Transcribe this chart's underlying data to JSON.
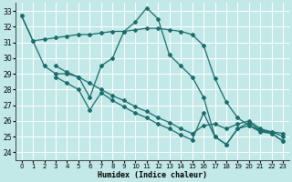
{
  "xlabel": "Humidex (Indice chaleur)",
  "ylabel": "",
  "xlim": [
    -0.5,
    23.5
  ],
  "ylim": [
    23.5,
    33.5
  ],
  "yticks": [
    24,
    25,
    26,
    27,
    28,
    29,
    30,
    31,
    32,
    33
  ],
  "xticks": [
    0,
    1,
    2,
    3,
    4,
    5,
    6,
    7,
    8,
    9,
    10,
    11,
    12,
    13,
    14,
    15,
    16,
    17,
    18,
    19,
    20,
    21,
    22,
    23
  ],
  "bg_color": "#c2e8e8",
  "line_color": "#1a6b6b",
  "grid_color": "#ffffff",
  "lines": [
    {
      "x": [
        0,
        1,
        2,
        3,
        4,
        5,
        6,
        7,
        8,
        9,
        10,
        11,
        12,
        13,
        14,
        15,
        16,
        17,
        18,
        19,
        20,
        21,
        22,
        23
      ],
      "y": [
        32.7,
        31.1,
        31.2,
        31.3,
        31.4,
        31.5,
        31.5,
        31.6,
        31.7,
        31.7,
        31.8,
        31.9,
        31.9,
        31.8,
        31.7,
        31.5,
        30.8,
        28.7,
        27.2,
        26.2,
        25.7,
        25.4,
        25.3,
        25.0
      ]
    },
    {
      "x": [
        0,
        1,
        2,
        3,
        4,
        5,
        6,
        7,
        8,
        9,
        10,
        11,
        12,
        13,
        14,
        15,
        16,
        17,
        18,
        19,
        20,
        21,
        22,
        23
      ],
      "y": [
        32.7,
        31.1,
        29.5,
        29.0,
        29.0,
        28.8,
        27.5,
        29.5,
        30.0,
        31.7,
        32.3,
        33.2,
        32.5,
        30.2,
        29.5,
        28.8,
        27.5,
        25.0,
        24.5,
        25.5,
        25.7,
        25.3,
        25.2,
        24.7
      ]
    },
    {
      "x": [
        3,
        4,
        5,
        6,
        7,
        8,
        9,
        10,
        11,
        12,
        13,
        14,
        15,
        16,
        17,
        18,
        19,
        20,
        21,
        22,
        23
      ],
      "y": [
        29.5,
        29.1,
        28.8,
        28.4,
        28.0,
        27.6,
        27.3,
        26.9,
        26.6,
        26.2,
        25.9,
        25.5,
        25.2,
        25.7,
        25.8,
        25.5,
        25.8,
        26.0,
        25.5,
        25.3,
        25.2
      ]
    },
    {
      "x": [
        3,
        4,
        5,
        6,
        7,
        8,
        9,
        10,
        11,
        12,
        13,
        14,
        15,
        16,
        17,
        18,
        19,
        20,
        21,
        22,
        23
      ],
      "y": [
        28.8,
        28.4,
        28.0,
        26.7,
        27.8,
        27.3,
        26.9,
        26.5,
        26.2,
        25.8,
        25.5,
        25.1,
        24.8,
        26.5,
        25.0,
        24.5,
        25.5,
        25.9,
        25.4,
        25.2,
        24.7
      ]
    }
  ]
}
